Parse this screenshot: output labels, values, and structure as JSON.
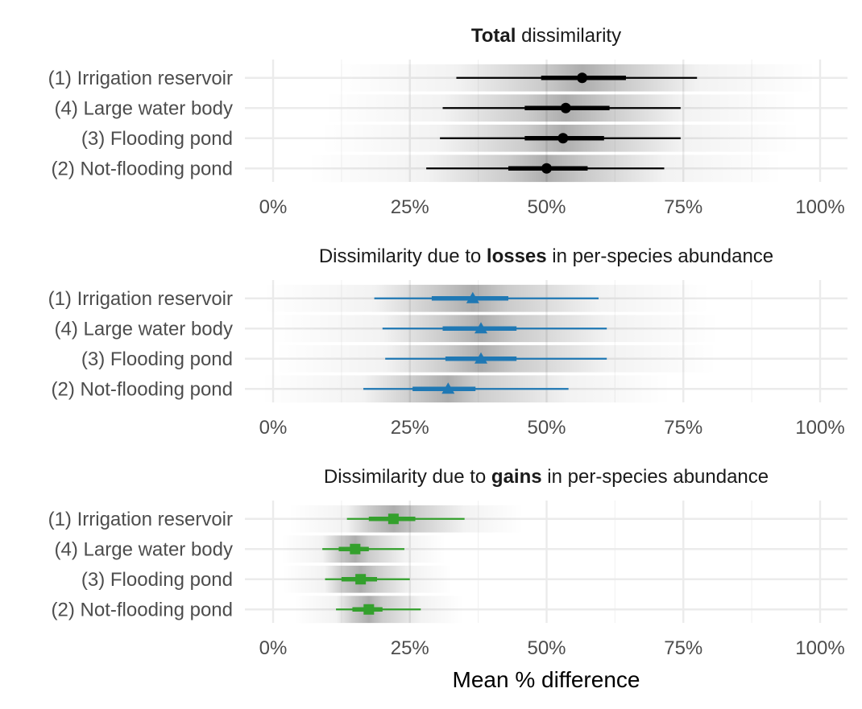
{
  "chart_data": {
    "type": "pointrange-halfeye",
    "xlabel": "Mean % difference",
    "xlim": [
      0,
      1
    ],
    "xticks": [
      0,
      0.25,
      0.5,
      0.75,
      1.0
    ],
    "xtick_labels": [
      "0%",
      "25%",
      "50%",
      "75%",
      "100%"
    ],
    "categories": [
      "(1) Irrigation reservoir",
      "(4) Large water body",
      "(3) Flooding pond",
      "(2) Not-flooding pond"
    ],
    "grid": true,
    "panels": [
      {
        "title_bold": "Total",
        "title_pre": "",
        "title_post": " dissimilarity",
        "color": "#000000",
        "shape": "circle",
        "points": [
          {
            "category": "(1) Irrigation reservoir",
            "median": 0.565,
            "inner": [
              0.49,
              0.645
            ],
            "outer": [
              0.335,
              0.775
            ]
          },
          {
            "category": "(4) Large water body",
            "median": 0.535,
            "inner": [
              0.46,
              0.615
            ],
            "outer": [
              0.31,
              0.745
            ]
          },
          {
            "category": "(3) Flooding pond",
            "median": 0.53,
            "inner": [
              0.46,
              0.605
            ],
            "outer": [
              0.305,
              0.745
            ]
          },
          {
            "category": "(2) Not-flooding pond",
            "median": 0.5,
            "inner": [
              0.43,
              0.575
            ],
            "outer": [
              0.28,
              0.715
            ]
          }
        ]
      },
      {
        "title_pre": "Dissimilarity due to ",
        "title_bold": "losses",
        "title_post": " in per-species abundance",
        "color": "#1f78b4",
        "shape": "triangle",
        "points": [
          {
            "category": "(1) Irrigation reservoir",
            "median": 0.365,
            "inner": [
              0.29,
              0.43
            ],
            "outer": [
              0.185,
              0.595
            ]
          },
          {
            "category": "(4) Large water body",
            "median": 0.38,
            "inner": [
              0.31,
              0.445
            ],
            "outer": [
              0.2,
              0.61
            ]
          },
          {
            "category": "(3) Flooding pond",
            "median": 0.38,
            "inner": [
              0.315,
              0.445
            ],
            "outer": [
              0.205,
              0.61
            ]
          },
          {
            "category": "(2) Not-flooding pond",
            "median": 0.32,
            "inner": [
              0.255,
              0.37
            ],
            "outer": [
              0.165,
              0.54
            ]
          }
        ]
      },
      {
        "title_pre": "Dissimilarity due to ",
        "title_bold": "gains",
        "title_post": " in per-species abundance",
        "color": "#33a02c",
        "shape": "square",
        "points": [
          {
            "category": "(1) Irrigation reservoir",
            "median": 0.22,
            "inner": [
              0.175,
              0.26
            ],
            "outer": [
              0.135,
              0.35
            ]
          },
          {
            "category": "(4) Large water body",
            "median": 0.15,
            "inner": [
              0.12,
              0.175
            ],
            "outer": [
              0.09,
              0.24
            ]
          },
          {
            "category": "(3) Flooding pond",
            "median": 0.16,
            "inner": [
              0.125,
              0.19
            ],
            "outer": [
              0.095,
              0.25
            ]
          },
          {
            "category": "(2) Not-flooding pond",
            "median": 0.175,
            "inner": [
              0.145,
              0.2
            ],
            "outer": [
              0.115,
              0.27
            ]
          }
        ]
      }
    ]
  }
}
